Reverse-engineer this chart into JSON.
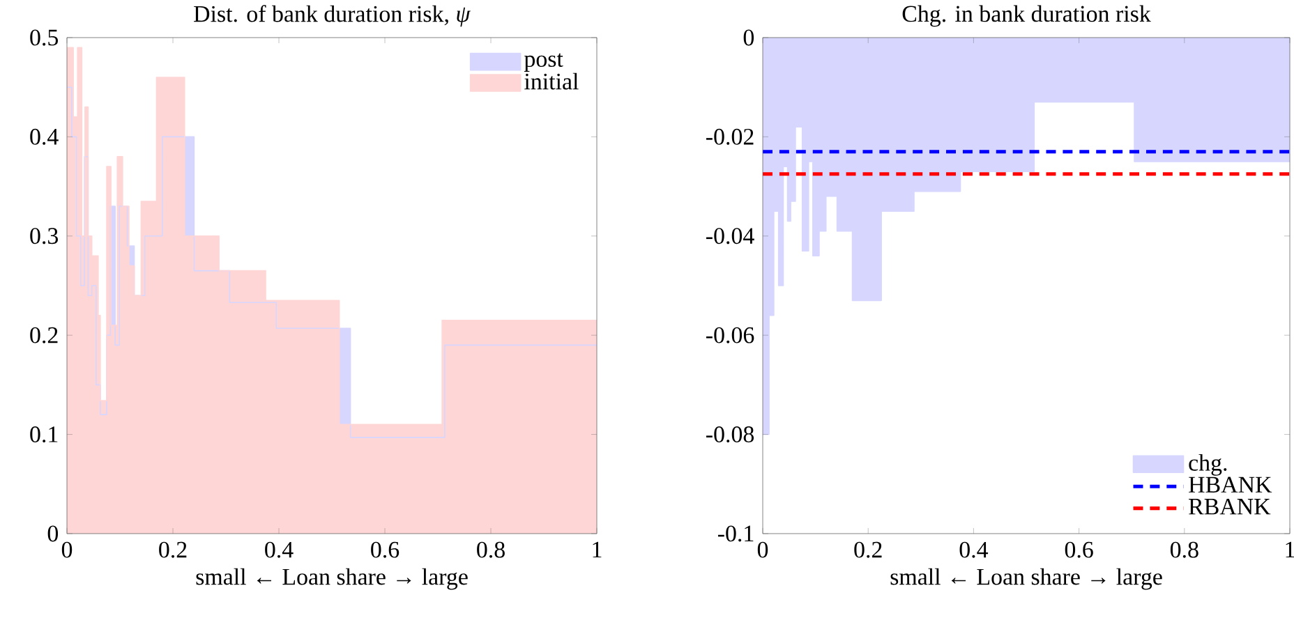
{
  "chart_data": [
    {
      "type": "area",
      "title": "Dist. of bank duration risk, *ψ*",
      "xlabel": "small ← Loan share → large",
      "xlim": [
        0,
        1
      ],
      "ylim": [
        0,
        0.5
      ],
      "xticks": [
        0,
        0.2,
        0.4,
        0.6,
        0.8,
        1
      ],
      "yticks": [
        0,
        0.1,
        0.2,
        0.3,
        0.4,
        0.5
      ],
      "legend": "top right",
      "series": [
        {
          "name": "post",
          "color": "#d6d6ff",
          "x": [
            0,
            0.009,
            0.009,
            0.018,
            0.018,
            0.026,
            0.026,
            0.033,
            0.033,
            0.04,
            0.04,
            0.047,
            0.047,
            0.055,
            0.055,
            0.063,
            0.063,
            0.075,
            0.075,
            0.082,
            0.082,
            0.091,
            0.091,
            0.099,
            0.099,
            0.114,
            0.114,
            0.127,
            0.127,
            0.147,
            0.147,
            0.18,
            0.18,
            0.24,
            0.24,
            0.307,
            0.307,
            0.395,
            0.395,
            0.535,
            0.535,
            0.713,
            0.713,
            1
          ],
          "values": [
            0.45,
            0.45,
            0.4,
            0.4,
            0.3,
            0.3,
            0.25,
            0.25,
            0.38,
            0.38,
            0.24,
            0.24,
            0.25,
            0.25,
            0.15,
            0.15,
            0.12,
            0.12,
            0.2,
            0.2,
            0.33,
            0.33,
            0.19,
            0.19,
            0.33,
            0.33,
            0.29,
            0.29,
            0.24,
            0.24,
            0.3,
            0.3,
            0.4,
            0.4,
            0.265,
            0.265,
            0.233,
            0.233,
            0.207,
            0.207,
            0.097,
            0.097,
            0.19,
            0.19
          ]
        },
        {
          "name": "initial",
          "color": "#ffd6d6",
          "x": [
            0,
            0.012,
            0.012,
            0.02,
            0.02,
            0.028,
            0.028,
            0.034,
            0.034,
            0.04,
            0.04,
            0.047,
            0.047,
            0.059,
            0.059,
            0.063,
            0.063,
            0.075,
            0.075,
            0.083,
            0.083,
            0.095,
            0.095,
            0.105,
            0.105,
            0.117,
            0.117,
            0.127,
            0.127,
            0.14,
            0.14,
            0.169,
            0.169,
            0.222,
            0.222,
            0.287,
            0.287,
            0.375,
            0.375,
            0.514,
            0.514,
            0.708,
            0.708,
            1
          ],
          "values": [
            0.49,
            0.49,
            0.42,
            0.42,
            0.49,
            0.49,
            0.3,
            0.3,
            0.43,
            0.43,
            0.3,
            0.3,
            0.28,
            0.28,
            0.22,
            0.22,
            0.134,
            0.134,
            0.37,
            0.37,
            0.21,
            0.21,
            0.38,
            0.38,
            0.33,
            0.33,
            0.27,
            0.27,
            0.24,
            0.24,
            0.335,
            0.335,
            0.46,
            0.46,
            0.3,
            0.3,
            0.265,
            0.265,
            0.235,
            0.235,
            0.11,
            0.11,
            0.215,
            0.215
          ]
        }
      ]
    },
    {
      "type": "area",
      "title": "Chg. in bank duration risk",
      "xlabel": "small ← Loan share → large",
      "xlim": [
        0,
        1
      ],
      "ylim": [
        -0.1,
        0
      ],
      "xticks": [
        0,
        0.2,
        0.4,
        0.6,
        0.8,
        1
      ],
      "yticks": [
        -0.1,
        -0.08,
        -0.06,
        -0.04,
        -0.02,
        0
      ],
      "legend": "bottom right",
      "series": [
        {
          "name": "chg.",
          "color": "#d6d6ff",
          "x": [
            0,
            0.012,
            0.012,
            0.021,
            0.021,
            0.03,
            0.03,
            0.039,
            0.039,
            0.047,
            0.047,
            0.053,
            0.053,
            0.062,
            0.062,
            0.075,
            0.075,
            0.087,
            0.087,
            0.095,
            0.095,
            0.107,
            0.107,
            0.12,
            0.12,
            0.141,
            0.141,
            0.17,
            0.17,
            0.225,
            0.225,
            0.287,
            0.287,
            0.375,
            0.375,
            0.515,
            0.515,
            0.705,
            0.705,
            1
          ],
          "values": [
            -0.08,
            -0.08,
            -0.056,
            -0.056,
            -0.035,
            -0.035,
            -0.05,
            -0.05,
            -0.026,
            -0.026,
            -0.037,
            -0.037,
            -0.033,
            -0.033,
            -0.018,
            -0.018,
            -0.043,
            -0.043,
            -0.025,
            -0.025,
            -0.044,
            -0.044,
            -0.039,
            -0.039,
            -0.032,
            -0.032,
            -0.039,
            -0.039,
            -0.053,
            -0.053,
            -0.035,
            -0.035,
            -0.031,
            -0.031,
            -0.027,
            -0.027,
            -0.013,
            -0.013,
            -0.025,
            -0.025
          ]
        }
      ],
      "ref_lines": [
        {
          "axis": "y",
          "value": -0.023,
          "label": "HBANK",
          "color": "#0000ff",
          "line_style": "dashed"
        },
        {
          "axis": "y",
          "value": -0.0275,
          "label": "RBANK",
          "color": "#ff0000",
          "line_style": "dashed"
        }
      ]
    }
  ]
}
